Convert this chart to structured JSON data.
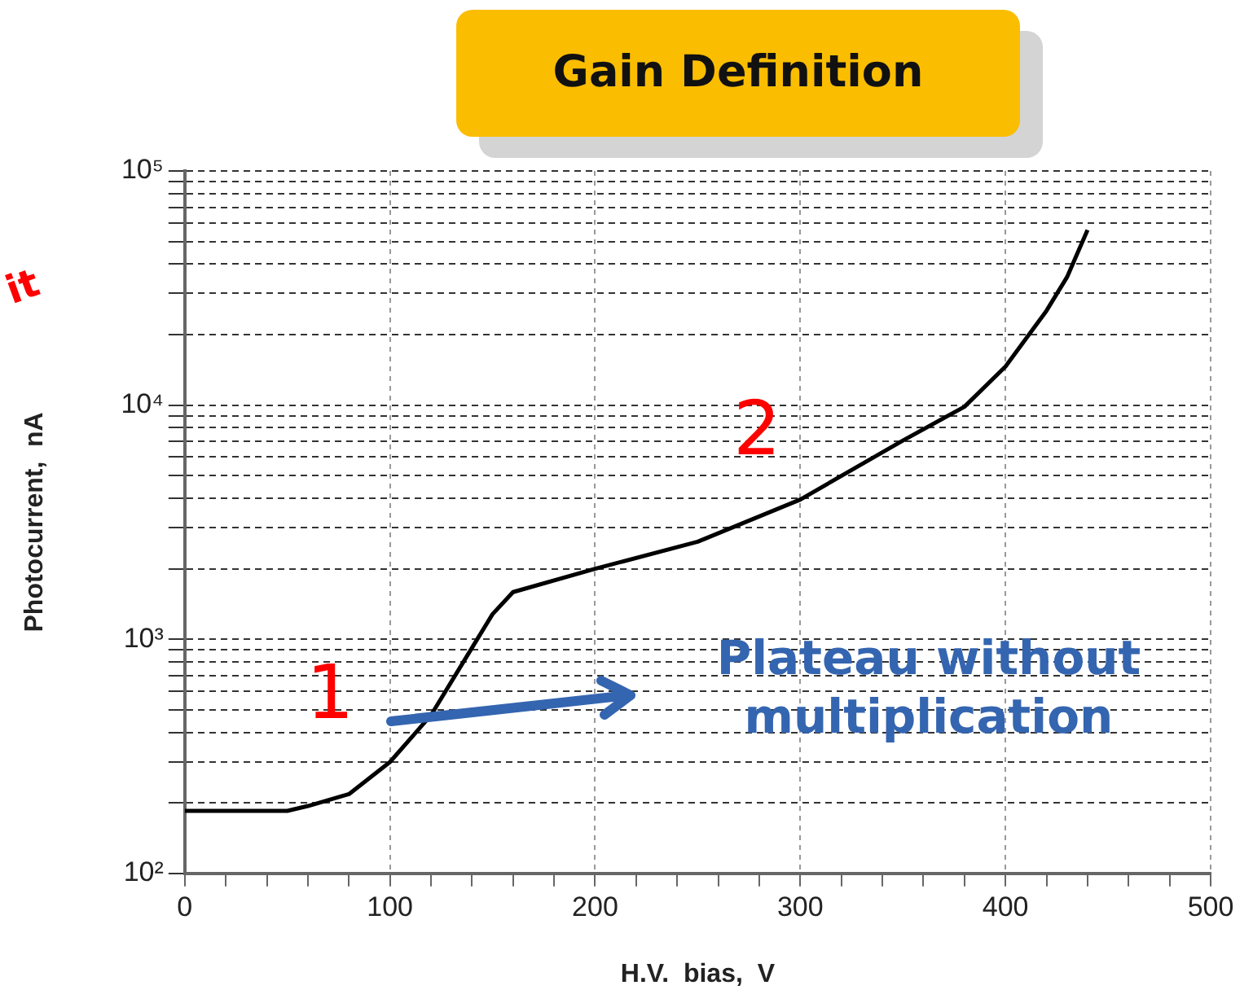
{
  "chart_data": {
    "type": "line",
    "title": "Gain Definition",
    "xlabel": "H.V.  bias,  V",
    "ylabel": "Photocurrent,  nA",
    "x": [
      0,
      50,
      60,
      80,
      100,
      120,
      140,
      150,
      160,
      200,
      250,
      300,
      350,
      380,
      400,
      420,
      430,
      440
    ],
    "series": [
      {
        "color": "#000000",
        "values": [
          185,
          185,
          194,
          218,
          299,
          474,
          920,
          1280,
          1590,
          2000,
          2610,
          3950,
          7060,
          9840,
          14600,
          25300,
          35200,
          56000
        ]
      }
    ],
    "xlim": [
      0,
      500
    ],
    "xticks": [
      0,
      {
        "value": 20,
        "label": null
      },
      {
        "value": 40,
        "label": null
      },
      {
        "value": 60,
        "label": null
      },
      {
        "value": 80,
        "label": null
      },
      100,
      {
        "value": 120,
        "label": null
      },
      {
        "value": 140,
        "label": null
      },
      {
        "value": 160,
        "label": null
      },
      {
        "value": 180,
        "label": null
      },
      200,
      {
        "value": 220,
        "label": null
      },
      {
        "value": 240,
        "label": null
      },
      {
        "value": 260,
        "label": null
      },
      {
        "value": 280,
        "label": null
      },
      300,
      {
        "value": 320,
        "label": null
      },
      {
        "value": 340,
        "label": null
      },
      {
        "value": 360,
        "label": null
      },
      {
        "value": 380,
        "label": null
      },
      400,
      {
        "value": 420,
        "label": null
      },
      {
        "value": 440,
        "label": null
      },
      {
        "value": 460,
        "label": null
      },
      {
        "value": 480,
        "label": null
      },
      500
    ],
    "ylim": [
      100,
      100000
    ],
    "yticks": [
      {
        "value": 100,
        "label": "10²"
      },
      {
        "value": 200,
        "label": null
      },
      {
        "value": 300,
        "label": null
      },
      {
        "value": 400,
        "label": null
      },
      {
        "value": 500,
        "label": null
      },
      {
        "value": 600,
        "label": null
      },
      {
        "value": 700,
        "label": null
      },
      {
        "value": 800,
        "label": null
      },
      {
        "value": 900,
        "label": null
      },
      {
        "value": 1000,
        "label": "10³"
      },
      {
        "value": 2000,
        "label": null
      },
      {
        "value": 3000,
        "label": null
      },
      {
        "value": 4000,
        "label": null
      },
      {
        "value": 5000,
        "label": null
      },
      {
        "value": 6000,
        "label": null
      },
      {
        "value": 7000,
        "label": null
      },
      {
        "value": 8000,
        "label": null
      },
      {
        "value": 9000,
        "label": null
      },
      {
        "value": 10000,
        "label": "10⁴"
      },
      {
        "value": 20000,
        "label": null
      },
      {
        "value": 30000,
        "label": null
      },
      {
        "value": 40000,
        "label": null
      },
      {
        "value": 50000,
        "label": null
      },
      {
        "value": 60000,
        "label": null
      },
      {
        "value": 70000,
        "label": null
      },
      {
        "value": 80000,
        "label": null
      },
      {
        "value": 90000,
        "label": null
      },
      {
        "value": 100000,
        "label": "10⁵"
      }
    ],
    "log": "y",
    "grid": true,
    "legend": false,
    "marker": "none",
    "line_style": "solid",
    "annotations": [
      "1",
      "2",
      "Plateau without multiplication",
      "it"
    ]
  }
}
